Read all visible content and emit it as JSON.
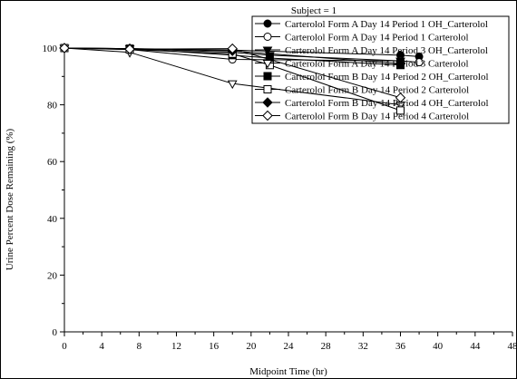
{
  "chart_data": {
    "type": "line",
    "title": "Subject = 1",
    "xlabel": "Midpoint Time (hr)",
    "ylabel": "Urine Percent Dose Remaining (%)",
    "xlim": [
      0,
      48
    ],
    "ylim": [
      0,
      100
    ],
    "xticks": [
      0,
      4,
      8,
      12,
      16,
      20,
      24,
      28,
      32,
      36,
      40,
      44,
      48
    ],
    "yticks": [
      0,
      20,
      40,
      60,
      80,
      100
    ],
    "grid": false,
    "legend_position": "top-right",
    "series": [
      {
        "name": "Carterolol Form A  Day  14  Period  1 OH_Carterolol",
        "marker": "circle-filled",
        "x": [
          0,
          7,
          18,
          36,
          38
        ],
        "y": [
          100,
          99.8,
          99.3,
          97.5,
          97.0
        ]
      },
      {
        "name": "Carterolol Form A  Day  14  Period  1 Carterolol",
        "marker": "circle-open",
        "x": [
          0,
          7,
          18,
          36,
          38
        ],
        "y": [
          100,
          99.5,
          96.0,
          95.5,
          95.0
        ]
      },
      {
        "name": "Carterolol Form A  Day  14  Period  3 OH_Carterolol",
        "marker": "triangle-down-filled",
        "x": [
          0,
          7,
          18,
          22,
          36
        ],
        "y": [
          100,
          99.8,
          98.5,
          97.5,
          95.5
        ]
      },
      {
        "name": "Carterolol Form A  Day  14  Period  3 Carterolol",
        "marker": "triangle-down-open",
        "x": [
          0,
          7,
          18,
          36
        ],
        "y": [
          100,
          98.5,
          87.5,
          80.0
        ]
      },
      {
        "name": "Carterolol Form B  Day  14  Period  2 OH_Carterolol",
        "marker": "square-filled",
        "x": [
          0,
          7,
          18,
          22,
          36
        ],
        "y": [
          100,
          99.8,
          97.5,
          96.5,
          94.0
        ]
      },
      {
        "name": "Carterolol Form B  Day  14  Period  2 Carterolol",
        "marker": "square-open",
        "x": [
          0,
          7,
          18,
          22,
          36
        ],
        "y": [
          100,
          99.5,
          98.0,
          94.0,
          78.0
        ]
      },
      {
        "name": "Carterolol Form B  Day  14  Period  4 OH_Carterolol",
        "marker": "diamond-filled",
        "x": [
          0,
          7,
          18,
          36
        ],
        "y": [
          100,
          99.8,
          99.0,
          94.5
        ]
      },
      {
        "name": "Carterolol Form B  Day  14  Period  4 Carterolol",
        "marker": "diamond-open",
        "x": [
          0,
          7,
          18,
          36
        ],
        "y": [
          100,
          99.6,
          99.8,
          82.5
        ]
      }
    ]
  }
}
